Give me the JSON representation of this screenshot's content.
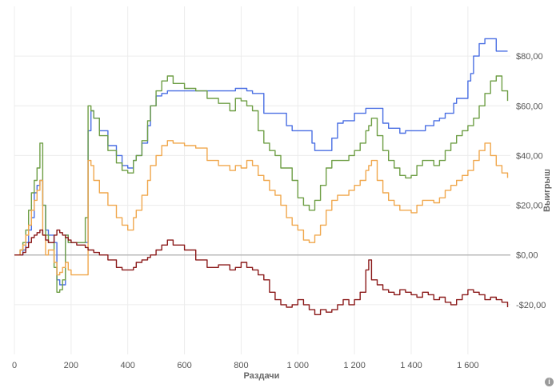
{
  "chart_data": {
    "type": "line",
    "title": "",
    "xlabel": "Раздачи",
    "ylabel": "Выигрыш",
    "xlim": [
      0,
      1750
    ],
    "ylim": [
      -40,
      100
    ],
    "x_ticks": [
      {
        "value": 0,
        "label": "0"
      },
      {
        "value": 200,
        "label": "200"
      },
      {
        "value": 400,
        "label": "400"
      },
      {
        "value": 600,
        "label": "600"
      },
      {
        "value": 800,
        "label": "800"
      },
      {
        "value": 1000,
        "label": "1 000"
      },
      {
        "value": 1200,
        "label": "1 200"
      },
      {
        "value": 1400,
        "label": "1 400"
      },
      {
        "value": 1600,
        "label": "1 600"
      }
    ],
    "y_ticks": [
      {
        "value": 80,
        "label": "$80,00"
      },
      {
        "value": 60,
        "label": "$60,00"
      },
      {
        "value": 40,
        "label": "$40,00"
      },
      {
        "value": 20,
        "label": "$20,00"
      },
      {
        "value": 0,
        "label": "$0,00"
      },
      {
        "value": -20,
        "label": "-$20,00"
      }
    ],
    "grid": true,
    "zero_line": true,
    "legend": "none",
    "series": [
      {
        "color": "#4a6fe3",
        "x": [
          0,
          20,
          30,
          40,
          50,
          60,
          70,
          80,
          90,
          100,
          110,
          120,
          140,
          150,
          160,
          170,
          180,
          190,
          200,
          220,
          240,
          250,
          260,
          270,
          280,
          300,
          330,
          360,
          380,
          400,
          420,
          430,
          450,
          470,
          480,
          500,
          520,
          540,
          560,
          600,
          650,
          700,
          760,
          780,
          800,
          820,
          840,
          860,
          880,
          940,
          960,
          980,
          1000,
          1040,
          1050,
          1060,
          1100,
          1120,
          1140,
          1160,
          1200,
          1230,
          1240,
          1280,
          1300,
          1320,
          1340,
          1360,
          1380,
          1420,
          1450,
          1480,
          1500,
          1520,
          1550,
          1560,
          1580,
          1600,
          1610,
          1620,
          1640,
          1660,
          1700,
          1740
        ],
        "y": [
          0,
          0,
          2,
          5,
          10,
          15,
          25,
          28,
          30,
          20,
          10,
          8,
          5,
          -10,
          -12,
          -12,
          8,
          5,
          5,
          5,
          5,
          5,
          50,
          58,
          55,
          50,
          44,
          40,
          36,
          35,
          38,
          40,
          45,
          52,
          60,
          64,
          65,
          66,
          66,
          66,
          66,
          66,
          66,
          67,
          67,
          66,
          65,
          65,
          57,
          57,
          52,
          50,
          50,
          50,
          45,
          42,
          42,
          47,
          53,
          54,
          57,
          57,
          59,
          59,
          53,
          51,
          51,
          49,
          50,
          50,
          52,
          54,
          55,
          57,
          61,
          63,
          63,
          70,
          73,
          80,
          85,
          87,
          82,
          82
        ]
      },
      {
        "color": "#6e9e45",
        "x": [
          0,
          20,
          30,
          40,
          50,
          60,
          70,
          80,
          90,
          100,
          110,
          120,
          140,
          150,
          160,
          170,
          180,
          190,
          200,
          220,
          240,
          250,
          260,
          270,
          280,
          300,
          330,
          360,
          380,
          400,
          420,
          430,
          450,
          470,
          480,
          500,
          520,
          540,
          560,
          600,
          640,
          680,
          720,
          760,
          780,
          800,
          820,
          840,
          860,
          880,
          900,
          920,
          940,
          960,
          980,
          1000,
          1020,
          1040,
          1060,
          1080,
          1100,
          1120,
          1140,
          1160,
          1180,
          1200,
          1220,
          1240,
          1250,
          1260,
          1280,
          1300,
          1320,
          1340,
          1360,
          1380,
          1400,
          1420,
          1440,
          1460,
          1480,
          1500,
          1520,
          1540,
          1560,
          1580,
          1600,
          1620,
          1640,
          1660,
          1680,
          1700,
          1720,
          1740
        ],
        "y": [
          0,
          2,
          5,
          10,
          18,
          25,
          30,
          35,
          45,
          20,
          8,
          5,
          -5,
          -15,
          -14,
          -10,
          8,
          5,
          5,
          5,
          5,
          15,
          60,
          58,
          55,
          48,
          42,
          37,
          34,
          33,
          38,
          40,
          46,
          54,
          60,
          66,
          70,
          72,
          69,
          67,
          66,
          63,
          61,
          58,
          63,
          62,
          60,
          58,
          50,
          45,
          42,
          40,
          35,
          35,
          30,
          23,
          20,
          18,
          22,
          28,
          35,
          38,
          38,
          38,
          40,
          42,
          45,
          50,
          52,
          55,
          48,
          42,
          38,
          35,
          32,
          31,
          32,
          36,
          38,
          38,
          36,
          38,
          42,
          45,
          48,
          50,
          52,
          55,
          60,
          65,
          70,
          72,
          66,
          62
        ]
      },
      {
        "color": "#f0a74c",
        "x": [
          0,
          20,
          30,
          40,
          50,
          60,
          70,
          80,
          90,
          100,
          110,
          120,
          140,
          150,
          160,
          170,
          180,
          190,
          200,
          220,
          240,
          250,
          260,
          270,
          280,
          300,
          330,
          360,
          380,
          400,
          420,
          430,
          450,
          470,
          480,
          500,
          520,
          540,
          560,
          600,
          640,
          680,
          720,
          760,
          780,
          800,
          820,
          840,
          860,
          880,
          900,
          920,
          940,
          960,
          980,
          1000,
          1020,
          1040,
          1060,
          1080,
          1100,
          1120,
          1140,
          1160,
          1180,
          1200,
          1220,
          1240,
          1250,
          1260,
          1280,
          1300,
          1320,
          1340,
          1360,
          1380,
          1400,
          1420,
          1440,
          1460,
          1480,
          1500,
          1520,
          1540,
          1560,
          1580,
          1600,
          1620,
          1640,
          1660,
          1680,
          1700,
          1720,
          1740
        ],
        "y": [
          0,
          2,
          4,
          8,
          12,
          18,
          22,
          26,
          30,
          8,
          0,
          2,
          -3,
          -8,
          -7,
          -5,
          -3,
          -6,
          -8,
          -8,
          -8,
          -8,
          38,
          36,
          30,
          25,
          20,
          15,
          12,
          10,
          15,
          18,
          24,
          30,
          36,
          40,
          44,
          46,
          45,
          44,
          43,
          38,
          36,
          34,
          36,
          35,
          38,
          36,
          32,
          30,
          26,
          24,
          20,
          15,
          12,
          10,
          6,
          5,
          8,
          12,
          18,
          22,
          24,
          24,
          26,
          28,
          30,
          34,
          36,
          38,
          30,
          25,
          22,
          20,
          18,
          18,
          17,
          20,
          22,
          22,
          21,
          23,
          26,
          28,
          30,
          32,
          34,
          38,
          42,
          45,
          40,
          36,
          33,
          31
        ]
      },
      {
        "color": "#8b1a1a",
        "x": [
          0,
          20,
          30,
          40,
          50,
          60,
          70,
          80,
          90,
          100,
          110,
          120,
          140,
          150,
          160,
          170,
          180,
          190,
          200,
          220,
          240,
          250,
          260,
          270,
          280,
          300,
          330,
          360,
          380,
          400,
          420,
          430,
          450,
          470,
          480,
          500,
          520,
          540,
          560,
          600,
          640,
          680,
          720,
          760,
          780,
          800,
          820,
          840,
          860,
          880,
          900,
          920,
          940,
          960,
          980,
          1000,
          1020,
          1040,
          1060,
          1080,
          1100,
          1120,
          1140,
          1160,
          1180,
          1200,
          1220,
          1240,
          1250,
          1260,
          1280,
          1300,
          1320,
          1340,
          1360,
          1380,
          1400,
          1420,
          1440,
          1460,
          1480,
          1500,
          1520,
          1540,
          1560,
          1580,
          1600,
          1620,
          1640,
          1660,
          1680,
          1700,
          1720,
          1740
        ],
        "y": [
          0,
          0,
          1,
          3,
          5,
          7,
          8,
          9,
          10,
          8,
          6,
          5,
          8,
          10,
          9,
          8,
          7,
          6,
          5,
          4,
          4,
          3,
          2,
          2,
          1,
          0,
          -2,
          -5,
          -6,
          -6,
          -5,
          -3,
          -2,
          -1,
          0,
          2,
          4,
          6,
          4,
          2,
          -2,
          -5,
          -4,
          -6,
          -5,
          -3,
          -5,
          -6,
          -8,
          -10,
          -15,
          -18,
          -20,
          -21,
          -20,
          -18,
          -20,
          -22,
          -24,
          -22,
          -23,
          -22,
          -20,
          -18,
          -20,
          -18,
          -15,
          -6,
          -2,
          -10,
          -12,
          -14,
          -15,
          -16,
          -14,
          -15,
          -16,
          -17,
          -15,
          -16,
          -18,
          -17,
          -19,
          -20,
          -18,
          -16,
          -14,
          -15,
          -16,
          -18,
          -17,
          -18,
          -19,
          -21
        ]
      }
    ]
  }
}
